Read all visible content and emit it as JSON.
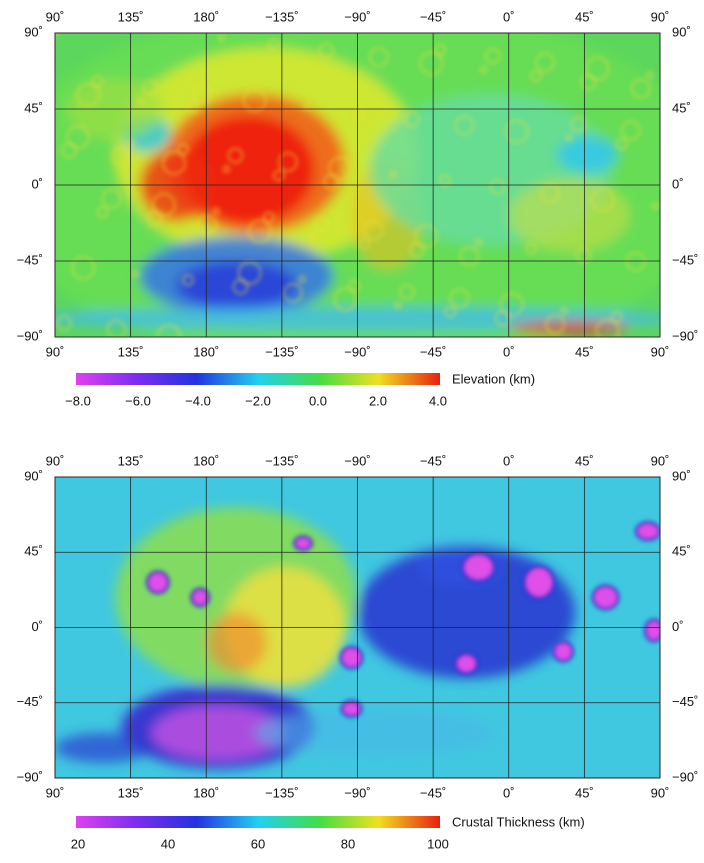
{
  "maps": [
    {
      "lon_labels": [
        "90˚",
        "135˚",
        "180˚",
        "−135˚",
        "−90˚",
        "−45˚",
        "0˚",
        "45˚",
        "90˚"
      ],
      "lat_labels": [
        "90˚",
        "45˚",
        "0˚",
        "−45˚",
        "−90˚"
      ],
      "colorbar": {
        "label": "Elevation (km)",
        "ticks": [
          "−8.0",
          "−6.0",
          "−4.0",
          "−2.0",
          "0.0",
          "2.0",
          "4.0"
        ]
      }
    },
    {
      "lon_labels": [
        "90˚",
        "135˚",
        "180˚",
        "−135˚",
        "−90˚",
        "−45˚",
        "0˚",
        "45˚",
        "90˚"
      ],
      "lat_labels": [
        "90˚",
        "45˚",
        "0˚",
        "−45˚",
        "−90˚"
      ],
      "colorbar": {
        "label": "Crustal Thickness (km)",
        "ticks": [
          "20",
          "40",
          "60",
          "80",
          "100"
        ]
      }
    }
  ]
}
